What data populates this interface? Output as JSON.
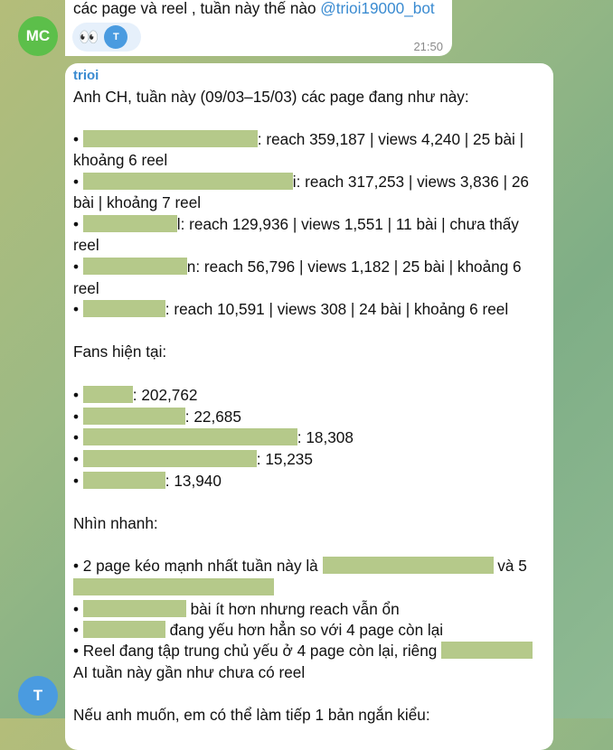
{
  "prev_message": {
    "text": "các page và reel , tuần này thế nào ",
    "mention": "@trioi19000_bot",
    "reaction_emoji": "👀",
    "reaction_user": "T",
    "time": "21:50",
    "avatar": "MC",
    "avatar_color": "#5cbf4a"
  },
  "reply": {
    "sender": "trioi",
    "sender_color": "#3a8bd1",
    "avatar": "T",
    "avatar_color": "#4a9be0",
    "intro": "Anh CH, tuần này (09/03–15/03) các page đang như này:",
    "pages": [
      {
        "stats": ": reach 359,187 | views 4,240 | 25 bài |",
        "cont": "khoảng 6 reel"
      },
      {
        "stats": "i: reach 317,253 | views 3,836 | 26",
        "cont": "bài | khoảng 7 reel"
      },
      {
        "stats": "l: reach 129,936 | views 1,551 | 11 bài | chưa thấy",
        "cont": "reel"
      },
      {
        "stats": "n: reach 56,796 | views 1,182 | 25 bài | khoảng 6",
        "cont": "reel"
      },
      {
        "stats": ": reach 10,591 | views 308 | 24 bài | khoảng 6 reel"
      }
    ],
    "fans_title": "Fans hiện tại:",
    "fans": [
      ": 202,762",
      ": 22,685",
      ": 18,308",
      ": 15,235",
      ": 13,940"
    ],
    "quick_title": "Nhìn nhanh:",
    "quick": {
      "q1a": "• 2 page kéo mạnh nhất tuần này là ",
      "q1b": " và 5",
      "q2": " bài ít hơn nhưng reach vẫn ổn",
      "q3": " đang yếu hơn hẳn so với 4 page còn lại",
      "q4": "• Reel đang tập trung chủ yếu ở 4 page còn lại, riêng ",
      "q4b": "AI tuần này gần như chưa có reel"
    },
    "closing": "Nếu anh muốn, em có thể làm tiếp 1 bản ngắn kiểu:",
    "bullet": "• "
  }
}
